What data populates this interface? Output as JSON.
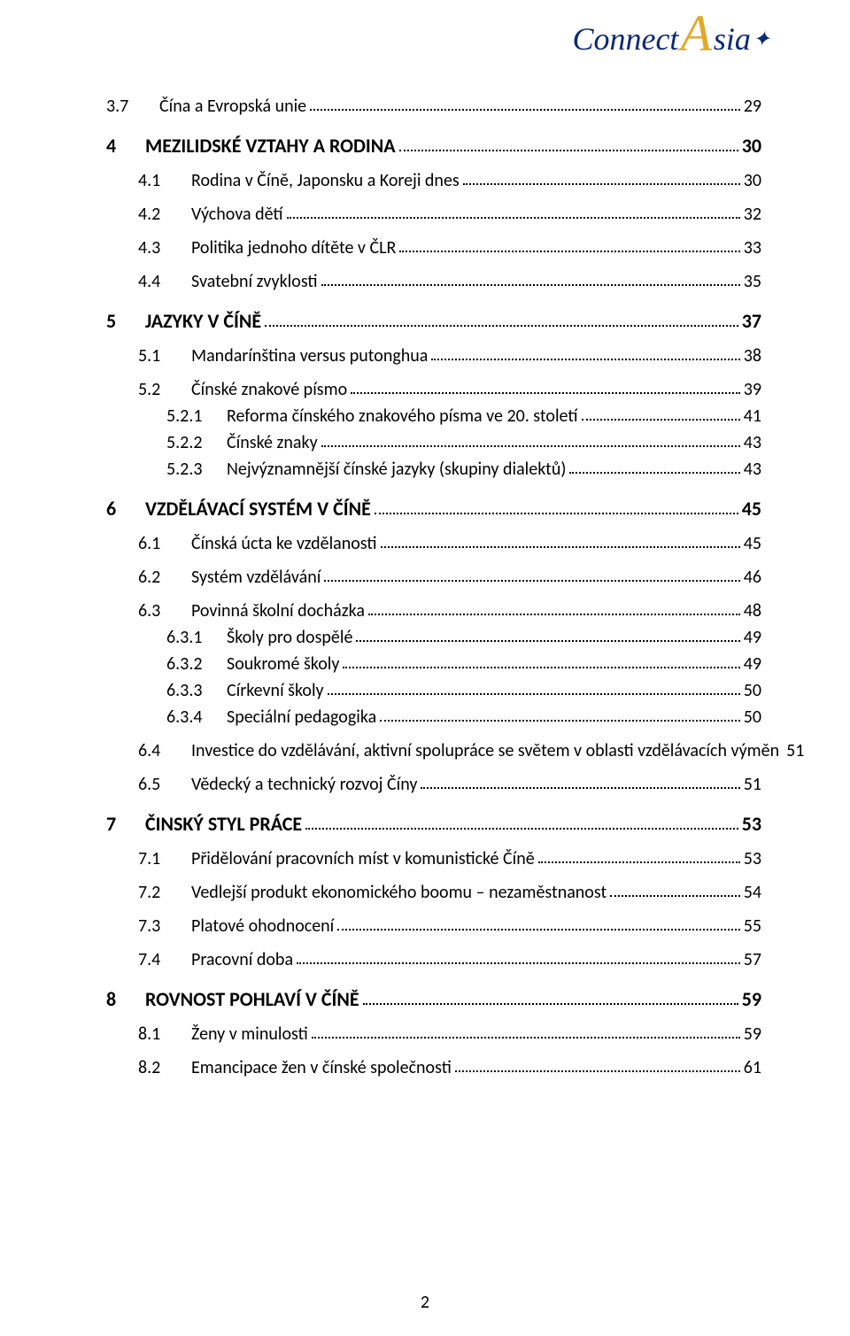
{
  "logo": {
    "left": "Connect",
    "mid": "A",
    "right": "sia",
    "tail": "✦"
  },
  "page_number": "2",
  "toc": [
    {
      "level": 2,
      "num": "3.7",
      "text": "Čína a Evropská unie",
      "page": "29",
      "flat": true
    },
    {
      "level": 1,
      "num": "4",
      "text": "MEZILIDSKÉ VZTAHY A RODINA",
      "page": "30"
    },
    {
      "level": 2,
      "num": "4.1",
      "text": "Rodina v Číně, Japonsku a Koreji dnes",
      "page": "30"
    },
    {
      "level": 2,
      "num": "4.2",
      "text": "Výchova dětí",
      "page": "32"
    },
    {
      "level": 2,
      "num": "4.3",
      "text": "Politika jednoho dítěte v ČLR",
      "page": "33"
    },
    {
      "level": 2,
      "num": "4.4",
      "text": "Svatební zvyklosti",
      "page": "35"
    },
    {
      "level": 1,
      "num": "5",
      "text": "JAZYKY V ČÍNĚ",
      "page": "37"
    },
    {
      "level": 2,
      "num": "5.1",
      "text": "Mandarínština versus putonghua",
      "page": "38"
    },
    {
      "level": 2,
      "num": "5.2",
      "text": "Čínské znakové písmo",
      "page": "39"
    },
    {
      "level": 3,
      "num": "5.2.1",
      "text": "Reforma čínského znakového písma ve 20. století",
      "page": "41"
    },
    {
      "level": 3,
      "num": "5.2.2",
      "text": "Čínské znaky",
      "page": "43"
    },
    {
      "level": 3,
      "num": "5.2.3",
      "text": "Nejvýznamnější čínské jazyky (skupiny dialektů)",
      "page": "43"
    },
    {
      "level": 1,
      "num": "6",
      "text": "VZDĚLÁVACÍ SYSTÉM V ČÍNĚ",
      "page": "45"
    },
    {
      "level": 2,
      "num": "6.1",
      "text": "Čínská úcta ke vzdělanosti",
      "page": "45"
    },
    {
      "level": 2,
      "num": "6.2",
      "text": "Systém vzdělávání",
      "page": "46"
    },
    {
      "level": 2,
      "num": "6.3",
      "text": "Povinná školní docházka",
      "page": "48"
    },
    {
      "level": 3,
      "num": "6.3.1",
      "text": "Školy pro dospělé",
      "page": "49"
    },
    {
      "level": 3,
      "num": "6.3.2",
      "text": "Soukromé školy",
      "page": "49"
    },
    {
      "level": 3,
      "num": "6.3.3",
      "text": "Církevní školy",
      "page": "50"
    },
    {
      "level": 3,
      "num": "6.3.4",
      "text": "Speciální pedagogika",
      "page": "50"
    },
    {
      "level": 2,
      "num": "6.4",
      "text": "Investice do vzdělávání, aktivní spolupráce se světem v oblasti vzdělávacích výměn",
      "page": "51"
    },
    {
      "level": 2,
      "num": "6.5",
      "text": "Vědecký a technický rozvoj Číny",
      "page": "51"
    },
    {
      "level": 1,
      "num": "7",
      "text": "ČINSKÝ STYL PRÁCE",
      "page": "53"
    },
    {
      "level": 2,
      "num": "7.1",
      "text": "Přidělování pracovních míst v komunistické Číně",
      "page": "53"
    },
    {
      "level": 2,
      "num": "7.2",
      "text": "Vedlejší produkt ekonomického boomu – nezaměstnanost",
      "page": "54"
    },
    {
      "level": 2,
      "num": "7.3",
      "text": "Platové ohodnocení",
      "page": "55"
    },
    {
      "level": 2,
      "num": "7.4",
      "text": "Pracovní doba",
      "page": "57"
    },
    {
      "level": 1,
      "num": "8",
      "text": "ROVNOST POHLAVÍ V ČÍNĚ",
      "page": "59"
    },
    {
      "level": 2,
      "num": "8.1",
      "text": "Ženy v minulosti",
      "page": "59"
    },
    {
      "level": 2,
      "num": "8.2",
      "text": "Emancipace žen v čínské společnosti",
      "page": "61"
    }
  ]
}
